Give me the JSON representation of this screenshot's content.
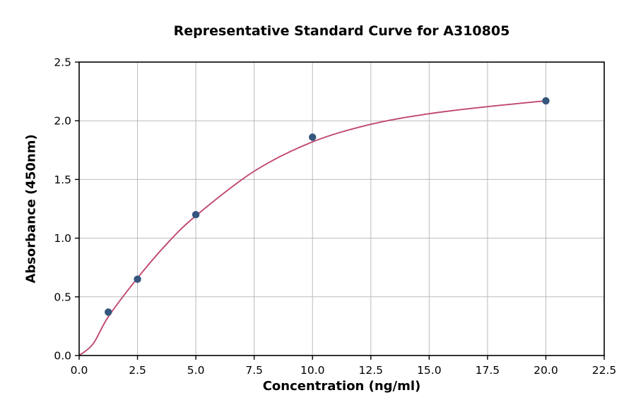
{
  "chart_data": {
    "type": "scatter",
    "title": "Representative Standard Curve for A310805",
    "xlabel": "Concentration (ng/ml)",
    "ylabel": "Absorbance (450nm)",
    "xlim": [
      0,
      22.5
    ],
    "ylim": [
      0,
      2.5
    ],
    "xticks": [
      0,
      2.5,
      5,
      7.5,
      10,
      12.5,
      15,
      17.5,
      20,
      22.5
    ],
    "xtick_labels": [
      "0.0",
      "2.5",
      "5.0",
      "7.5",
      "10.0",
      "12.5",
      "15.0",
      "17.5",
      "20.0",
      "22.5"
    ],
    "yticks": [
      0,
      0.5,
      1,
      1.5,
      2,
      2.5
    ],
    "ytick_labels": [
      "0.0",
      "0.5",
      "1.0",
      "1.5",
      "2.0",
      "2.5"
    ],
    "grid": true,
    "legend_position": "none",
    "points": {
      "x": [
        1.25,
        2.5,
        5,
        10,
        20
      ],
      "y": [
        0.37,
        0.65,
        1.2,
        1.86,
        2.17
      ]
    },
    "fit_curve": {
      "x": [
        0,
        0.6,
        1.25,
        2.5,
        3.75,
        5,
        7.5,
        10,
        12.5,
        15,
        17.5,
        20
      ],
      "y": [
        0,
        0.1,
        0.33,
        0.66,
        0.95,
        1.19,
        1.57,
        1.82,
        1.97,
        2.06,
        2.12,
        2.17
      ]
    },
    "colors": {
      "point": "#35567d",
      "curve": "#c0496d",
      "grid": "#bbbbbb",
      "axis": "#000000"
    }
  }
}
